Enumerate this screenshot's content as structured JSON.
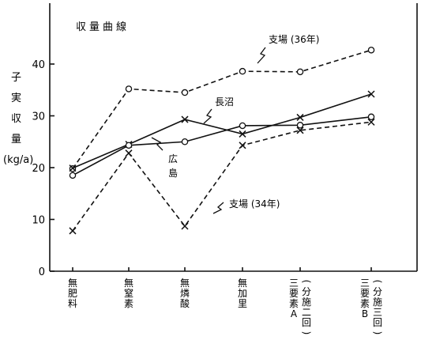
{
  "chart_data": {
    "type": "line",
    "title": "収量曲線",
    "ylabel_chars": [
      "子",
      "実",
      "収",
      "量"
    ],
    "yunit": "(kg/a)",
    "ylim": [
      0,
      50
    ],
    "yticks": [
      0,
      10,
      20,
      30,
      40
    ],
    "grid": false,
    "categories": [
      {
        "chars": [
          "無",
          "肥",
          "料"
        ],
        "paren": []
      },
      {
        "chars": [
          "無",
          "窒",
          "素"
        ],
        "paren": []
      },
      {
        "chars": [
          "無",
          "燐",
          "酸"
        ],
        "paren": []
      },
      {
        "chars": [
          "無",
          "加",
          "里"
        ],
        "paren": []
      },
      {
        "chars": [
          "三",
          "要",
          "素",
          "A"
        ],
        "paren": [
          "(",
          "分",
          "施",
          "二",
          "回",
          ")"
        ]
      },
      {
        "chars": [
          "三",
          "要",
          "素",
          "B"
        ],
        "paren": [
          "(",
          "分",
          "施",
          "三",
          "回",
          ")"
        ]
      }
    ],
    "series": [
      {
        "name": "支場 (36年)",
        "marker": "o",
        "dash": true,
        "values": [
          19.8,
          35.2,
          34.5,
          38.6,
          38.5,
          42.7
        ]
      },
      {
        "name": "長沼",
        "marker": "x",
        "dash": false,
        "values": [
          19.9,
          24.5,
          29.3,
          26.5,
          29.7,
          34.2
        ]
      },
      {
        "name": "広島",
        "marker": "o",
        "dash": false,
        "values": [
          18.5,
          24.3,
          25.0,
          28.1,
          28.2,
          29.8
        ]
      },
      {
        "name": "支場 (34年)",
        "marker": "x",
        "dash": true,
        "values": [
          7.8,
          22.8,
          8.7,
          24.3,
          27.2,
          28.8
        ]
      }
    ],
    "annotations": [
      {
        "text": "支場 (36年)",
        "series": 0
      },
      {
        "text": "長沼",
        "series": 1
      },
      {
        "chars": [
          "広",
          "島"
        ],
        "series": 2
      },
      {
        "text": "支場 (34年)",
        "series": 3
      }
    ]
  }
}
